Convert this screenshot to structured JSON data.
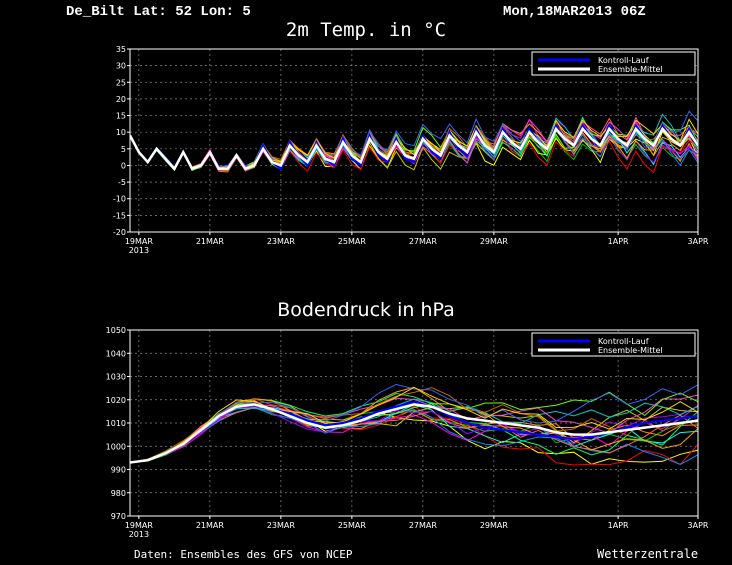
{
  "header": {
    "station": "De_Bilt  Lat: 52 Lon: 5",
    "date": "Mon,18MAR2013 06Z"
  },
  "footer": {
    "source": "Daten: Ensembles des GFS von NCEP",
    "brand": "Wetterzentrale"
  },
  "colors": {
    "background": "#000000",
    "kontroll": "#0000ff",
    "mittel": "#ffffff",
    "members": [
      "#00c800",
      "#ffff00",
      "#ff8c00",
      "#ff0000",
      "#00ffff",
      "#ff00ff",
      "#c8c800",
      "#008cff",
      "#ff6464",
      "#00ff64",
      "#a000ff",
      "#ffa000",
      "#00c8c8",
      "#ff3cc8",
      "#64ff00",
      "#c86400",
      "#3264ff",
      "#ffd200"
    ]
  },
  "chart_data": [
    {
      "type": "line",
      "title": "2m Temp. in °C",
      "ylim": [
        -20,
        35
      ],
      "yticks": [
        35,
        30,
        25,
        20,
        15,
        10,
        5,
        0,
        -5,
        -10,
        -15,
        -20
      ],
      "xlim": [
        0,
        16
      ],
      "xticks": [
        {
          "x": 0.25,
          "label": "19MAR",
          "sub": "2013"
        },
        {
          "x": 2.25,
          "label": "21MAR",
          "sub": ""
        },
        {
          "x": 4.25,
          "label": "23MAR",
          "sub": ""
        },
        {
          "x": 6.25,
          "label": "25MAR",
          "sub": ""
        },
        {
          "x": 8.25,
          "label": "27MAR",
          "sub": ""
        },
        {
          "x": 10.25,
          "label": "29MAR",
          "sub": ""
        },
        {
          "x": 13.75,
          "label": "1APR",
          "sub": ""
        },
        {
          "x": 16,
          "label": "3APR",
          "sub": ""
        }
      ],
      "grid": true,
      "legend": {
        "position": "top-right",
        "entries": [
          "Kontroll-Lauf",
          "Ensemble-Mittel"
        ]
      },
      "series": [
        {
          "name": "Ensemble-Mittel",
          "x": [
            0,
            0.25,
            0.5,
            0.75,
            1,
            1.25,
            1.5,
            1.75,
            2,
            2.25,
            2.5,
            2.75,
            3,
            3.25,
            3.5,
            3.75,
            4,
            4.25,
            4.5,
            4.75,
            5,
            5.25,
            5.5,
            5.75,
            6,
            6.25,
            6.5,
            6.75,
            7,
            7.25,
            7.5,
            7.75,
            8,
            8.25,
            8.5,
            8.75,
            9,
            9.25,
            9.5,
            9.75,
            10,
            10.25,
            10.5,
            10.75,
            11,
            11.25,
            11.5,
            11.75,
            12,
            12.25,
            12.5,
            12.75,
            13,
            13.25,
            13.5,
            13.75,
            14,
            14.25,
            14.5,
            14.75,
            15,
            15.25,
            15.5,
            15.75,
            16
          ],
          "values": [
            9,
            4,
            1,
            5,
            2,
            -1,
            4,
            -1,
            0,
            4,
            -1,
            -1,
            3,
            -1,
            0,
            5,
            1,
            0,
            6,
            3,
            1,
            6,
            2,
            1,
            7,
            3,
            1,
            8,
            4,
            2,
            7,
            3,
            2,
            8,
            5,
            3,
            9,
            6,
            4,
            10,
            6,
            4,
            10,
            7,
            5,
            10,
            7,
            5,
            11,
            8,
            6,
            11,
            8,
            6,
            11,
            8,
            6,
            11,
            8,
            6,
            11,
            8,
            6,
            10,
            6
          ]
        },
        {
          "name": "Kontroll-Lauf",
          "x": [
            0,
            0.25,
            0.5,
            0.75,
            1,
            1.25,
            1.5,
            1.75,
            2,
            2.25,
            2.5,
            2.75,
            3,
            3.25,
            3.5,
            3.75,
            4,
            4.25,
            4.5,
            4.75,
            5,
            5.25,
            5.5,
            5.75,
            6,
            6.25,
            6.5,
            6.75,
            7,
            7.25,
            7.5,
            7.75,
            8,
            8.25,
            8.5,
            8.75,
            9,
            9.25,
            9.5,
            9.75,
            10,
            10.25,
            10.5,
            10.75,
            11,
            11.25,
            11.5,
            11.75,
            12,
            12.25,
            12.5,
            12.75,
            13,
            13.25,
            13.5,
            13.75,
            14,
            14.25,
            14.5,
            14.75,
            15,
            15.25,
            15.5,
            15.75,
            16
          ],
          "values": [
            9,
            4,
            1,
            5,
            2,
            -1,
            4,
            -1,
            0,
            4,
            -1,
            -1,
            3,
            -1,
            0,
            6,
            1,
            -1,
            7,
            3,
            0,
            7,
            2,
            0,
            8,
            2,
            0,
            9,
            3,
            1,
            8,
            2,
            1,
            9,
            4,
            2,
            10,
            5,
            3,
            11,
            6,
            4,
            11,
            7,
            5,
            11,
            7,
            5,
            12,
            8,
            6,
            12,
            8,
            6,
            12,
            8,
            6,
            12,
            8,
            6,
            12,
            8,
            6,
            11,
            6
          ]
        }
      ]
    },
    {
      "type": "line",
      "title": "Bodendruck in hPa",
      "ylim": [
        970,
        1050
      ],
      "yticks": [
        1050,
        1040,
        1030,
        1020,
        1010,
        1000,
        990,
        980,
        970
      ],
      "xlim": [
        0,
        16
      ],
      "xticks": [
        {
          "x": 0.25,
          "label": "19MAR",
          "sub": "2013"
        },
        {
          "x": 2.25,
          "label": "21MAR",
          "sub": ""
        },
        {
          "x": 4.25,
          "label": "23MAR",
          "sub": ""
        },
        {
          "x": 6.25,
          "label": "25MAR",
          "sub": ""
        },
        {
          "x": 8.25,
          "label": "27MAR",
          "sub": ""
        },
        {
          "x": 10.25,
          "label": "29MAR",
          "sub": ""
        },
        {
          "x": 13.75,
          "label": "1APR",
          "sub": ""
        },
        {
          "x": 16,
          "label": "3APR",
          "sub": ""
        }
      ],
      "grid": true,
      "legend": {
        "position": "top-right",
        "entries": [
          "Kontroll-Lauf",
          "Ensemble-Mittel"
        ]
      },
      "series": [
        {
          "name": "Ensemble-Mittel",
          "x": [
            0,
            0.5,
            1,
            1.5,
            2,
            2.5,
            3,
            3.5,
            4,
            4.5,
            5,
            5.5,
            6,
            6.5,
            7,
            7.5,
            8,
            8.5,
            9,
            9.5,
            10,
            10.5,
            11,
            11.5,
            12,
            12.5,
            13,
            13.5,
            14,
            14.5,
            15,
            15.5,
            16
          ],
          "values": [
            993,
            994,
            997,
            1001,
            1007,
            1013,
            1017,
            1018,
            1016,
            1013,
            1010,
            1008,
            1009,
            1011,
            1014,
            1016,
            1018,
            1017,
            1014,
            1012,
            1011,
            1010,
            1009,
            1008,
            1006,
            1005,
            1005,
            1006,
            1007,
            1008,
            1009,
            1010,
            1011
          ]
        },
        {
          "name": "Kontroll-Lauf",
          "x": [
            0,
            0.5,
            1,
            1.5,
            2,
            2.5,
            3,
            3.5,
            4,
            4.5,
            5,
            5.5,
            6,
            6.5,
            7,
            7.5,
            8,
            8.5,
            9,
            9.5,
            10,
            10.5,
            11,
            11.5,
            12,
            12.5,
            13,
            13.5,
            14,
            14.5,
            15,
            15.5,
            16
          ],
          "values": [
            993,
            994,
            997,
            1001,
            1007,
            1013,
            1017,
            1018,
            1016,
            1014,
            1011,
            1009,
            1010,
            1012,
            1015,
            1017,
            1019,
            1017,
            1013,
            1010,
            1008,
            1007,
            1006,
            1005,
            1004,
            1003,
            1004,
            1006,
            1008,
            1010,
            1011,
            1012,
            1013
          ]
        }
      ]
    }
  ]
}
